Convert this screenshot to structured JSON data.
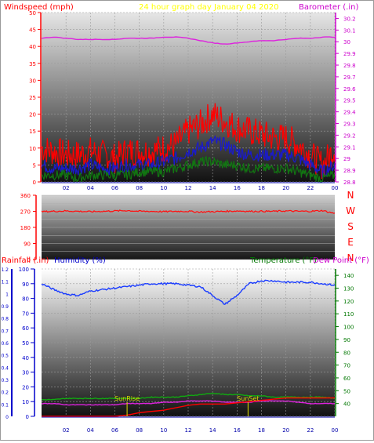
{
  "title": "24 hour graph day   January 04 2020",
  "colors": {
    "wind_label": "#ff0000",
    "title": "#ffff00",
    "baro_label": "#cc00cc",
    "rain_label": "#ff0000",
    "humidity_label": "#0000cc",
    "temp_label": "#007700",
    "dew_label": "#cc00cc",
    "wind_gust": "#ff0000",
    "wind_avg": "#1a1acc",
    "wind_low": "#117711",
    "baro": "#dd22dd",
    "direction": "#ff1111",
    "humidity": "#1a3cff",
    "temperature": "#11aa11",
    "dewpoint": "#dd22dd",
    "rain": "#ff0000",
    "sun_label": "#dddd00"
  },
  "chart_data": [
    {
      "type": "line",
      "name": "wind_baro",
      "ylabel": "Windspeed (mph)",
      "y2label": "Barometer (.in)",
      "ylim": [
        0,
        50
      ],
      "yticks": [
        0,
        5,
        10,
        15,
        20,
        25,
        30,
        35,
        40,
        45,
        50
      ],
      "y2lim": [
        28.8,
        30.25
      ],
      "y2ticks": [
        "28.8",
        "28.9",
        "29",
        "29.1",
        "29.2",
        "29.3",
        "29.4",
        "29.5",
        "29.6",
        "29.7",
        "29.8",
        "29.9",
        "30",
        "30.1",
        "30.2"
      ],
      "xlim": [
        0,
        24
      ],
      "xticks": [
        "02",
        "04",
        "06",
        "08",
        "10",
        "12",
        "14",
        "16",
        "18",
        "20",
        "22",
        "00"
      ],
      "x": [
        0,
        1,
        2,
        3,
        4,
        5,
        6,
        7,
        8,
        9,
        10,
        11,
        12,
        13,
        14,
        15,
        16,
        17,
        18,
        19,
        20,
        21,
        22,
        23,
        24
      ],
      "series": [
        {
          "key": "gust",
          "values": [
            10,
            9,
            8,
            8,
            9,
            8,
            7,
            9,
            9,
            9,
            10,
            11,
            15,
            17,
            20,
            18,
            16,
            15,
            14,
            13,
            13,
            11,
            8,
            5,
            10
          ]
        },
        {
          "key": "avg",
          "values": [
            5,
            4,
            4,
            4,
            5,
            4,
            4,
            5,
            5,
            5,
            6,
            7,
            9,
            10,
            12,
            11,
            9,
            8,
            8,
            8,
            8,
            7,
            5,
            3,
            5
          ]
        },
        {
          "key": "low",
          "values": [
            2,
            2,
            2,
            1,
            2,
            2,
            2,
            2,
            3,
            3,
            3,
            4,
            5,
            6,
            6,
            5,
            5,
            4,
            4,
            4,
            4,
            3,
            2,
            1,
            2
          ]
        },
        {
          "key": "barometer",
          "values": [
            30.03,
            30.04,
            30.03,
            30.02,
            30.02,
            30.02,
            30.02,
            30.03,
            30.03,
            30.03,
            30.04,
            30.04,
            30.03,
            30.01,
            29.99,
            29.98,
            29.99,
            30.0,
            30.01,
            30.01,
            30.02,
            30.03,
            30.03,
            30.04,
            30.04
          ]
        }
      ]
    },
    {
      "type": "line",
      "name": "wind_direction",
      "ylim": [
        0,
        360
      ],
      "yticks": [
        0,
        90,
        180,
        270,
        360
      ],
      "compass": [
        "N",
        "W",
        "S",
        "E",
        "N"
      ],
      "x": [
        0,
        1,
        2,
        3,
        4,
        5,
        6,
        7,
        8,
        9,
        10,
        11,
        12,
        13,
        14,
        15,
        16,
        17,
        18,
        19,
        20,
        21,
        22,
        23,
        24
      ],
      "values": [
        268,
        270,
        272,
        270,
        268,
        270,
        272,
        274,
        270,
        270,
        268,
        270,
        270,
        266,
        268,
        270,
        272,
        270,
        270,
        270,
        272,
        270,
        270,
        274,
        258
      ]
    },
    {
      "type": "line",
      "name": "rain_humidity_temp",
      "y_left_label": "Rainfall (.in)",
      "y_left2_label": "Humidity (%)",
      "y_right_label_temp": "Temperature (°F)",
      "y_right_label_dew": "Dew Point (°F)",
      "rain_lim": [
        0,
        1.2
      ],
      "rain_ticks": [
        "0",
        "0.1",
        "0.2",
        "0.3",
        "0.4",
        "0.5",
        "0.6",
        "0.7",
        "0.8",
        "0.9",
        "1",
        "1.1",
        "1.2"
      ],
      "hum_lim": [
        0,
        100
      ],
      "hum_ticks": [
        "0",
        "10",
        "20",
        "30",
        "40",
        "50",
        "60",
        "70",
        "80",
        "90",
        "100"
      ],
      "temp_lim": [
        30,
        145
      ],
      "temp_ticks": [
        "40",
        "50",
        "60",
        "70",
        "80",
        "90",
        "100",
        "110",
        "120",
        "130",
        "140"
      ],
      "xticks": [
        "02",
        "04",
        "06",
        "08",
        "10",
        "12",
        "14",
        "16",
        "18",
        "20",
        "22",
        "00"
      ],
      "x": [
        0,
        1,
        2,
        3,
        4,
        5,
        6,
        7,
        8,
        9,
        10,
        11,
        12,
        13,
        14,
        15,
        16,
        17,
        18,
        19,
        20,
        21,
        22,
        23,
        24
      ],
      "series": [
        {
          "key": "humidity",
          "values": [
            90,
            86,
            83,
            82,
            85,
            86,
            87,
            88,
            89,
            90,
            90,
            90,
            89,
            88,
            82,
            76,
            82,
            90,
            92,
            92,
            91,
            91,
            91,
            90,
            89
          ]
        },
        {
          "key": "temperature",
          "values": [
            43,
            43,
            44,
            44,
            44,
            44,
            44,
            44,
            44,
            45,
            45,
            45,
            46,
            47,
            48,
            47,
            47,
            46,
            46,
            45,
            45,
            45,
            45,
            45,
            44
          ]
        },
        {
          "key": "dewpoint",
          "values": [
            40,
            40,
            39,
            39,
            39,
            39,
            39,
            40,
            40,
            40,
            41,
            41,
            42,
            42,
            42,
            41,
            41,
            41,
            42,
            42,
            42,
            41,
            40,
            40,
            40
          ]
        },
        {
          "key": "rain",
          "values": [
            0,
            0,
            0,
            0,
            0,
            0,
            0,
            0.01,
            0.03,
            0.04,
            0.05,
            0.07,
            0.09,
            0.1,
            0.1,
            0.1,
            0.11,
            0.12,
            0.13,
            0.14,
            0.15,
            0.15,
            0.15,
            0.15,
            0.15
          ]
        }
      ],
      "annotations": [
        {
          "text": "SunRise",
          "x": 7.0
        },
        {
          "text": "SunSet",
          "x": 16.9
        }
      ]
    }
  ]
}
